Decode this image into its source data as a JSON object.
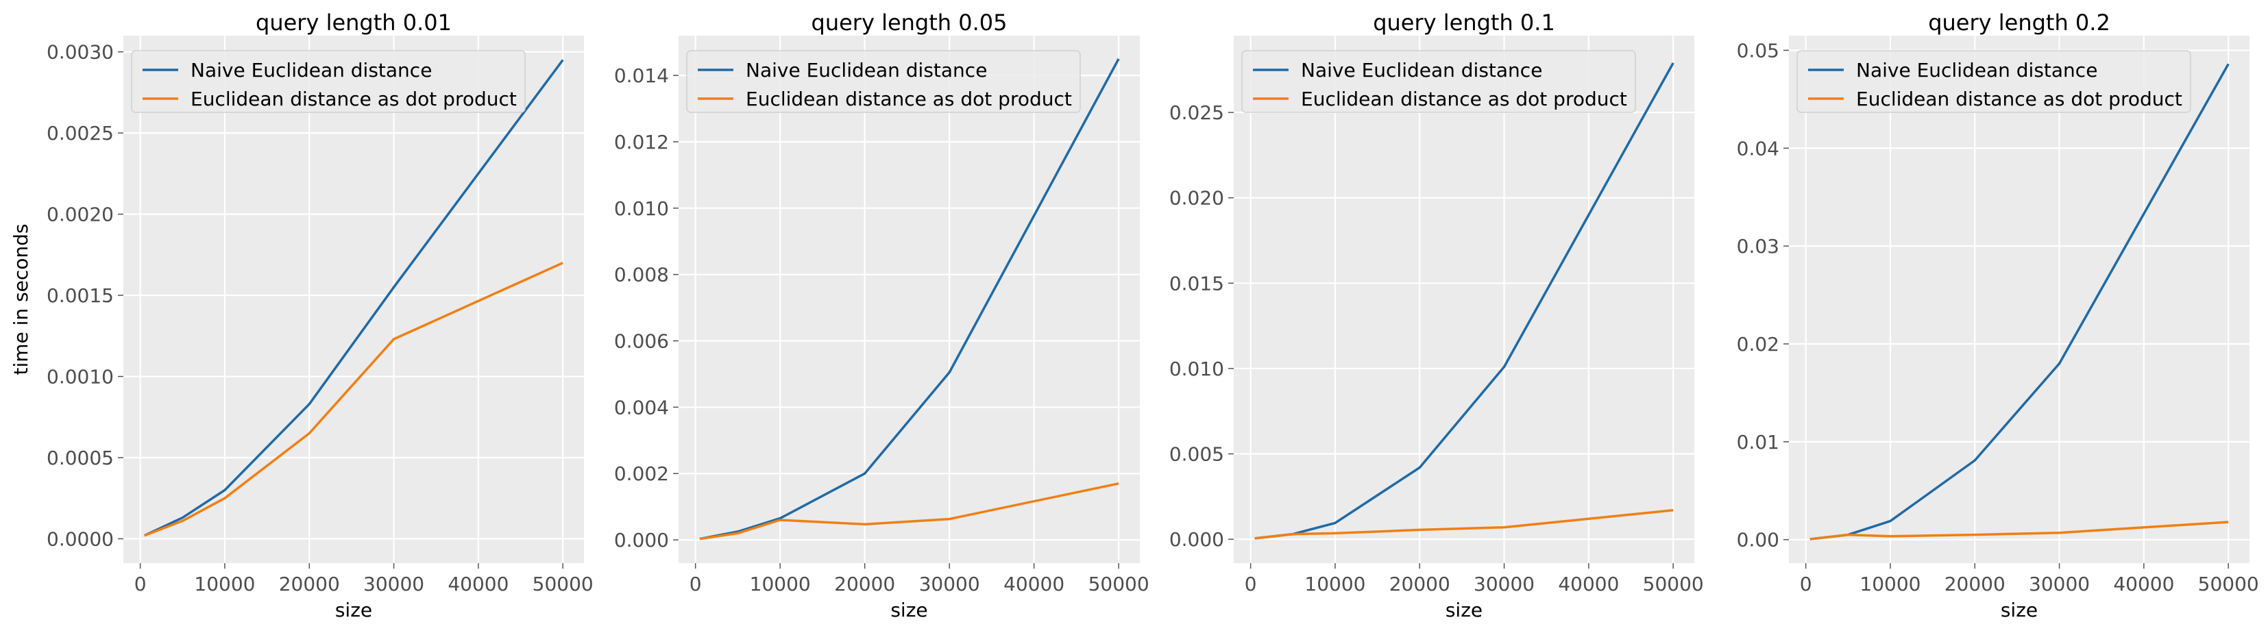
{
  "colors": {
    "naive": "#1f6aa5",
    "dot": "#f07f12",
    "panel_bg": "#ebebeb",
    "grid": "#ffffff"
  },
  "chart_data": [
    {
      "type": "line",
      "title": "query length 0.01",
      "xlabel": "size",
      "ylabel": "time in seconds",
      "xlim": [
        -2000,
        52500
      ],
      "ylim": [
        -0.00015,
        0.0031
      ],
      "xticks": [
        0,
        10000,
        20000,
        30000,
        40000,
        50000
      ],
      "xtick_labels": [
        "0",
        "10000",
        "20000",
        "30000",
        "40000",
        "50000"
      ],
      "yticks": [
        0,
        0.0005,
        0.001,
        0.0015,
        0.002,
        0.0025,
        0.003
      ],
      "ytick_labels": [
        "0.0000",
        "0.0005",
        "0.0010",
        "0.0015",
        "0.0020",
        "0.0025",
        "0.0030"
      ],
      "legend_position": "top-left",
      "x": [
        500,
        5000,
        10000,
        20000,
        30000,
        50000
      ],
      "series": [
        {
          "name": "Naive Euclidean distance",
          "values": [
            2e-05,
            0.00013,
            0.0003,
            0.00083,
            0.00155,
            0.00295
          ]
        },
        {
          "name": "Euclidean distance as dot product",
          "values": [
            2e-05,
            0.00011,
            0.00025,
            0.00065,
            0.00123,
            0.0017
          ]
        }
      ]
    },
    {
      "type": "line",
      "title": "query length 0.05",
      "xlabel": "size",
      "ylabel": "",
      "xlim": [
        -2000,
        52500
      ],
      "ylim": [
        -0.0007,
        0.0152
      ],
      "xticks": [
        0,
        10000,
        20000,
        30000,
        40000,
        50000
      ],
      "xtick_labels": [
        "0",
        "10000",
        "20000",
        "30000",
        "40000",
        "50000"
      ],
      "yticks": [
        0,
        0.002,
        0.004,
        0.006,
        0.008,
        0.01,
        0.012,
        0.014
      ],
      "ytick_labels": [
        "0.000",
        "0.002",
        "0.004",
        "0.006",
        "0.008",
        "0.010",
        "0.012",
        "0.014"
      ],
      "legend_position": "top-left",
      "x": [
        500,
        5000,
        10000,
        20000,
        30000,
        50000
      ],
      "series": [
        {
          "name": "Naive Euclidean distance",
          "values": [
            3e-05,
            0.00025,
            0.00065,
            0.002,
            0.00505,
            0.0145
          ]
        },
        {
          "name": "Euclidean distance as dot product",
          "values": [
            3e-05,
            0.0002,
            0.0006,
            0.00047,
            0.00063,
            0.0017
          ]
        }
      ]
    },
    {
      "type": "line",
      "title": "query length 0.1",
      "xlabel": "size",
      "ylabel": "",
      "xlim": [
        -2000,
        52500
      ],
      "ylim": [
        -0.0014,
        0.0295
      ],
      "xticks": [
        0,
        10000,
        20000,
        30000,
        40000,
        50000
      ],
      "xtick_labels": [
        "0",
        "10000",
        "20000",
        "30000",
        "40000",
        "50000"
      ],
      "yticks": [
        0,
        0.005,
        0.01,
        0.015,
        0.02,
        0.025
      ],
      "ytick_labels": [
        "0.000",
        "0.005",
        "0.010",
        "0.015",
        "0.020",
        "0.025"
      ],
      "legend_position": "top-left",
      "x": [
        500,
        5000,
        10000,
        20000,
        30000,
        50000
      ],
      "series": [
        {
          "name": "Naive Euclidean distance",
          "values": [
            5e-05,
            0.0003,
            0.00095,
            0.0042,
            0.0101,
            0.0279
          ]
        },
        {
          "name": "Euclidean distance as dot product",
          "values": [
            5e-05,
            0.0003,
            0.00035,
            0.00055,
            0.0007,
            0.0017
          ]
        }
      ]
    },
    {
      "type": "line",
      "title": "query length 0.2",
      "xlabel": "size",
      "ylabel": "",
      "xlim": [
        -2000,
        52500
      ],
      "ylim": [
        -0.0024,
        0.0515
      ],
      "xticks": [
        0,
        10000,
        20000,
        30000,
        40000,
        50000
      ],
      "xtick_labels": [
        "0",
        "10000",
        "20000",
        "30000",
        "40000",
        "50000"
      ],
      "yticks": [
        0,
        0.01,
        0.02,
        0.03,
        0.04,
        0.05
      ],
      "ytick_labels": [
        "0.00",
        "0.01",
        "0.02",
        "0.03",
        "0.04",
        "0.05"
      ],
      "legend_position": "top-left",
      "x": [
        500,
        5000,
        10000,
        20000,
        30000,
        50000
      ],
      "series": [
        {
          "name": "Naive Euclidean distance",
          "values": [
            5e-05,
            0.0005,
            0.0019,
            0.0081,
            0.018,
            0.0486
          ]
        },
        {
          "name": "Euclidean distance as dot product",
          "values": [
            5e-05,
            0.0005,
            0.00035,
            0.0005,
            0.0007,
            0.0018
          ]
        }
      ]
    }
  ]
}
